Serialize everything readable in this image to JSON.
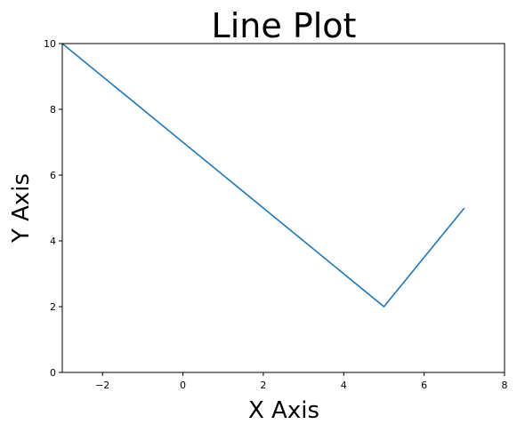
{
  "chart_data": {
    "type": "line",
    "title": "Line Plot",
    "xlabel": "X Axis",
    "ylabel": "Y Axis",
    "xlim": [
      -3,
      8
    ],
    "ylim": [
      0,
      10
    ],
    "xticks": [
      -2,
      0,
      2,
      4,
      6,
      8
    ],
    "yticks": [
      0,
      2,
      4,
      6,
      8,
      10
    ],
    "xtick_labels": [
      "−2",
      "0",
      "2",
      "4",
      "6",
      "8"
    ],
    "ytick_labels": [
      "0",
      "2",
      "4",
      "6",
      "8",
      "10"
    ],
    "grid": false,
    "series": [
      {
        "x": [
          -3,
          5,
          7
        ],
        "y": [
          10,
          2,
          5
        ],
        "color": "#1f77b4"
      }
    ]
  }
}
